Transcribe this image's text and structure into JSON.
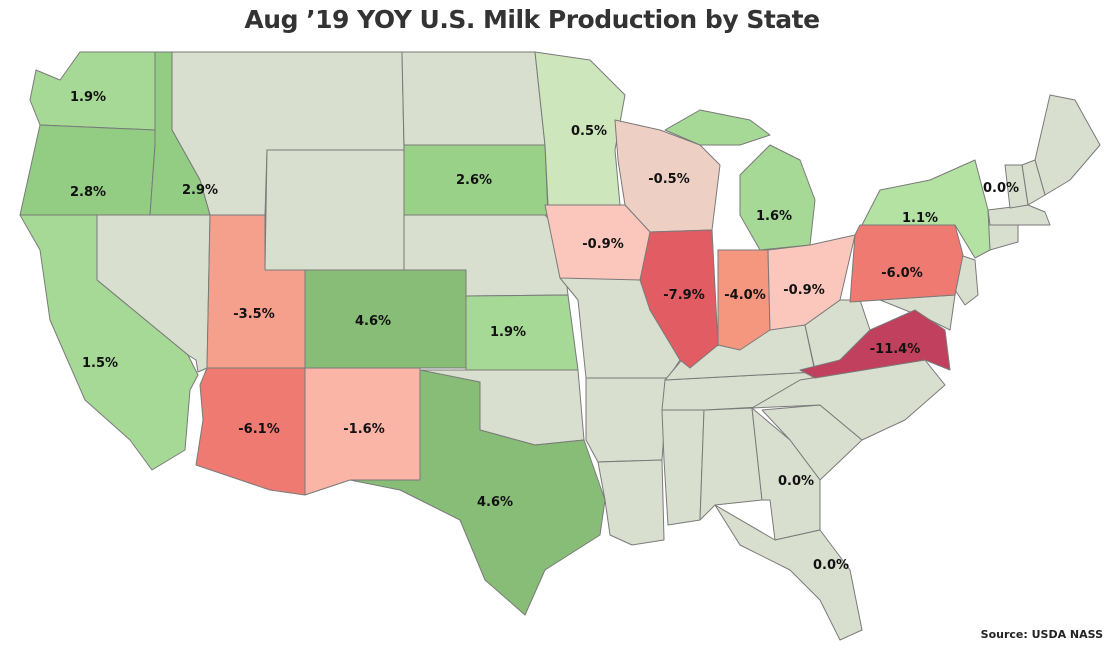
{
  "title": "Aug ’19 YOY U.S. Milk Production by State",
  "source": "Source: USDA NASS",
  "colors": {
    "neutral": "#d9dfcf",
    "border": "#7a7a7a"
  },
  "labeled_states": [
    {
      "state": "Washington",
      "value_text": "1.9%",
      "color": "#a6d996"
    },
    {
      "state": "Oregon",
      "value_text": "2.8%",
      "color": "#93cc83"
    },
    {
      "state": "Idaho",
      "value_text": "2.9%",
      "color": "#93cc83"
    },
    {
      "state": "California",
      "value_text": "1.5%",
      "color": "#a6d996"
    },
    {
      "state": "Utah",
      "value_text": "-3.5%",
      "color": "#f5a08d"
    },
    {
      "state": "Arizona",
      "value_text": "-6.1%",
      "color": "#ee7a72"
    },
    {
      "state": "Colorado",
      "value_text": "4.6%",
      "color": "#87bd77"
    },
    {
      "state": "New Mexico",
      "value_text": "-1.6%",
      "color": "#fbb5a7"
    },
    {
      "state": "Texas",
      "value_text": "4.6%",
      "color": "#87bd77"
    },
    {
      "state": "South Dakota",
      "value_text": "2.6%",
      "color": "#99d188"
    },
    {
      "state": "Kansas",
      "value_text": "1.9%",
      "color": "#a6d996"
    },
    {
      "state": "Minnesota",
      "value_text": "0.5%",
      "color": "#cde6bc"
    },
    {
      "state": "Wisconsin",
      "value_text": "-0.5%",
      "color": "#eecfc3"
    },
    {
      "state": "Iowa",
      "value_text": "-0.9%",
      "color": "#fbc6bb"
    },
    {
      "state": "Illinois",
      "value_text": "-7.9%",
      "color": "#e25c64"
    },
    {
      "state": "Indiana",
      "value_text": "-4.0%",
      "color": "#f5967f"
    },
    {
      "state": "Michigan",
      "value_text": "1.6%",
      "color": "#a6d996"
    },
    {
      "state": "Ohio",
      "value_text": "-0.9%",
      "color": "#fbc6bb"
    },
    {
      "state": "Pennsylvania",
      "value_text": "-6.0%",
      "color": "#ee7a72"
    },
    {
      "state": "New York",
      "value_text": "1.1%",
      "color": "#b3e2a2"
    },
    {
      "state": "Vermont",
      "value_text": "0.0%",
      "color": "#d9dfcf"
    },
    {
      "state": "Virginia",
      "value_text": "-11.4%",
      "color": "#c0405e"
    },
    {
      "state": "Georgia",
      "value_text": "0.0%",
      "color": "#d9dfcf"
    },
    {
      "state": "Florida",
      "value_text": "0.0%",
      "color": "#d9dfcf"
    }
  ]
}
